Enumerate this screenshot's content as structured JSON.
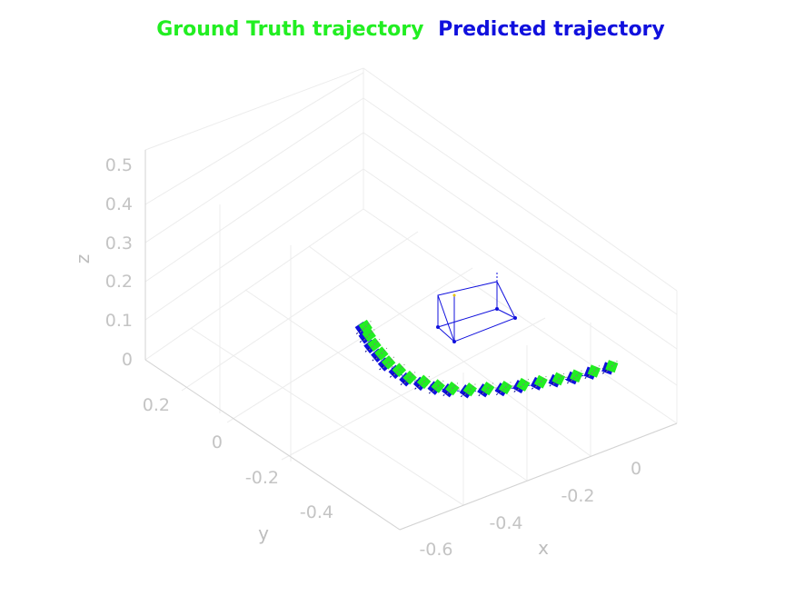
{
  "chart_data": {
    "type": "scatter",
    "title_parts": [
      {
        "text": "Ground Truth trajectory",
        "color": "#22ee22"
      },
      {
        "text": "Predicted trajectory",
        "color": "#1010dd"
      }
    ],
    "xlabel": "x",
    "ylabel": "y",
    "zlabel": "z",
    "x_ticks": [
      "-0.6",
      "-0.4",
      "-0.2",
      "0"
    ],
    "y_ticks": [
      "-0.4",
      "-0.2",
      "0",
      "0.2"
    ],
    "z_ticks": [
      "0",
      "0.1",
      "0.2",
      "0.3",
      "0.4",
      "0.5"
    ],
    "grid": true,
    "series": [
      {
        "name": "Ground Truth trajectory",
        "color": "#22ee22",
        "points": [
          [
            0.02,
            0.12,
            0.2
          ],
          [
            -0.03,
            0.12,
            0.205
          ],
          [
            -0.08,
            0.12,
            0.21
          ],
          [
            -0.13,
            0.12,
            0.22
          ],
          [
            -0.18,
            0.12,
            0.23
          ],
          [
            -0.23,
            0.12,
            0.24
          ],
          [
            -0.28,
            0.12,
            0.25
          ],
          [
            -0.33,
            0.12,
            0.265
          ],
          [
            -0.38,
            0.12,
            0.28
          ],
          [
            -0.43,
            0.12,
            0.3
          ],
          [
            -0.47,
            0.12,
            0.32
          ],
          [
            -0.51,
            0.12,
            0.345
          ],
          [
            -0.55,
            0.12,
            0.37
          ],
          [
            -0.58,
            0.12,
            0.4
          ],
          [
            -0.61,
            0.12,
            0.43
          ],
          [
            -0.63,
            0.12,
            0.46
          ],
          [
            -0.65,
            0.12,
            0.49
          ],
          [
            -0.665,
            0.12,
            0.52
          ],
          [
            -0.675,
            0.12,
            0.545
          ]
        ]
      },
      {
        "name": "Predicted trajectory",
        "color": "#1010dd",
        "points": [
          [
            0.02,
            0.12,
            0.195
          ],
          [
            -0.03,
            0.12,
            0.2
          ],
          [
            -0.08,
            0.12,
            0.205
          ],
          [
            -0.13,
            0.12,
            0.215
          ],
          [
            -0.18,
            0.12,
            0.225
          ],
          [
            -0.23,
            0.12,
            0.235
          ],
          [
            -0.28,
            0.12,
            0.245
          ],
          [
            -0.33,
            0.12,
            0.26
          ],
          [
            -0.38,
            0.12,
            0.275
          ],
          [
            -0.43,
            0.12,
            0.295
          ],
          [
            -0.47,
            0.12,
            0.315
          ],
          [
            -0.51,
            0.12,
            0.34
          ],
          [
            -0.55,
            0.12,
            0.365
          ],
          [
            -0.58,
            0.12,
            0.395
          ],
          [
            -0.61,
            0.12,
            0.425
          ],
          [
            -0.63,
            0.12,
            0.455
          ],
          [
            -0.65,
            0.12,
            0.485
          ],
          [
            -0.665,
            0.12,
            0.515
          ],
          [
            -0.675,
            0.12,
            0.54
          ]
        ]
      }
    ]
  }
}
